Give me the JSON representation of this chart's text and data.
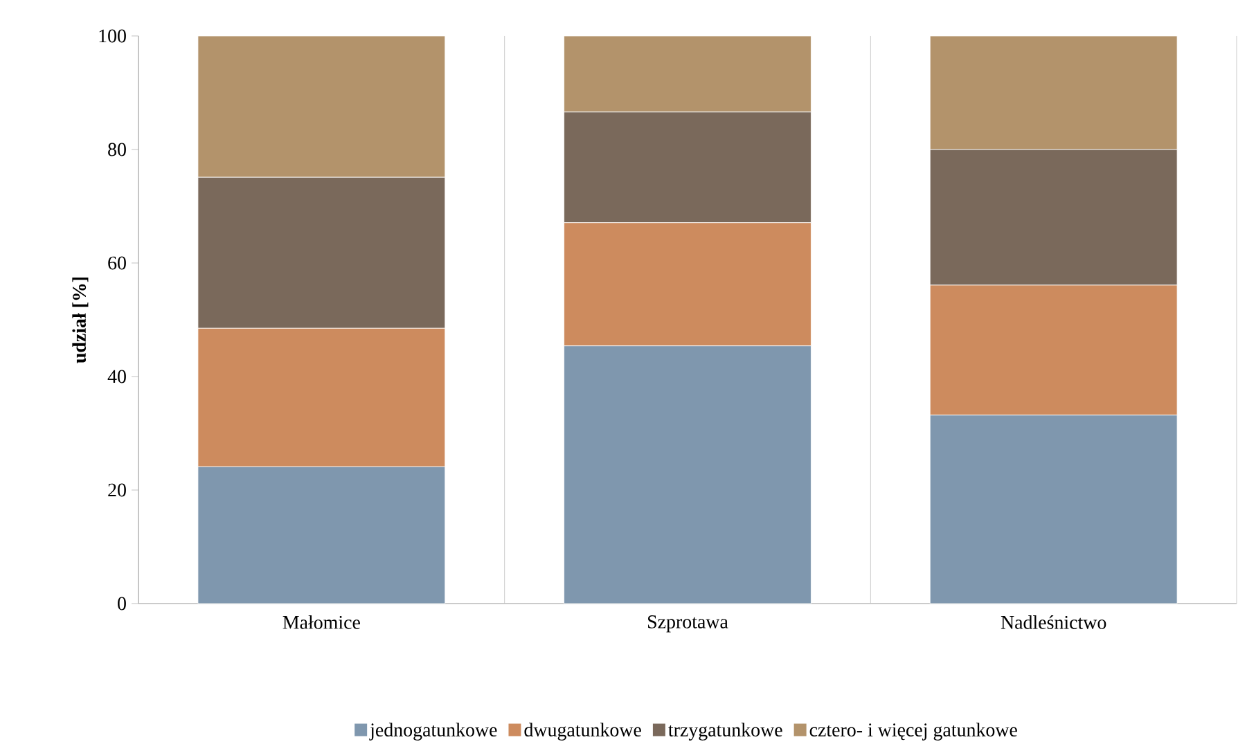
{
  "chart_data": {
    "type": "bar",
    "stacked": true,
    "ylabel": "udział [%]",
    "categories": [
      "Małomice",
      "Szprotawa",
      "Nadleśnictwo"
    ],
    "series": [
      {
        "name": "jednogatunkowe",
        "color": "#7f97ae",
        "values": [
          24.1,
          45.4,
          33.2
        ]
      },
      {
        "name": "dwugatunkowe",
        "color": "#cd8b5e",
        "values": [
          24.4,
          21.7,
          22.9
        ]
      },
      {
        "name": "trzygatunkowe",
        "color": "#7a695b",
        "values": [
          26.6,
          19.5,
          23.9
        ]
      },
      {
        "name": "cztero- i więcej gatunkowe",
        "color": "#b3936b",
        "values": [
          24.9,
          13.4,
          20.0
        ]
      }
    ],
    "ylim": [
      0,
      100
    ],
    "yticks": [
      0,
      20,
      40,
      60,
      80,
      100
    ],
    "grid": "x",
    "legend": "bottom"
  }
}
